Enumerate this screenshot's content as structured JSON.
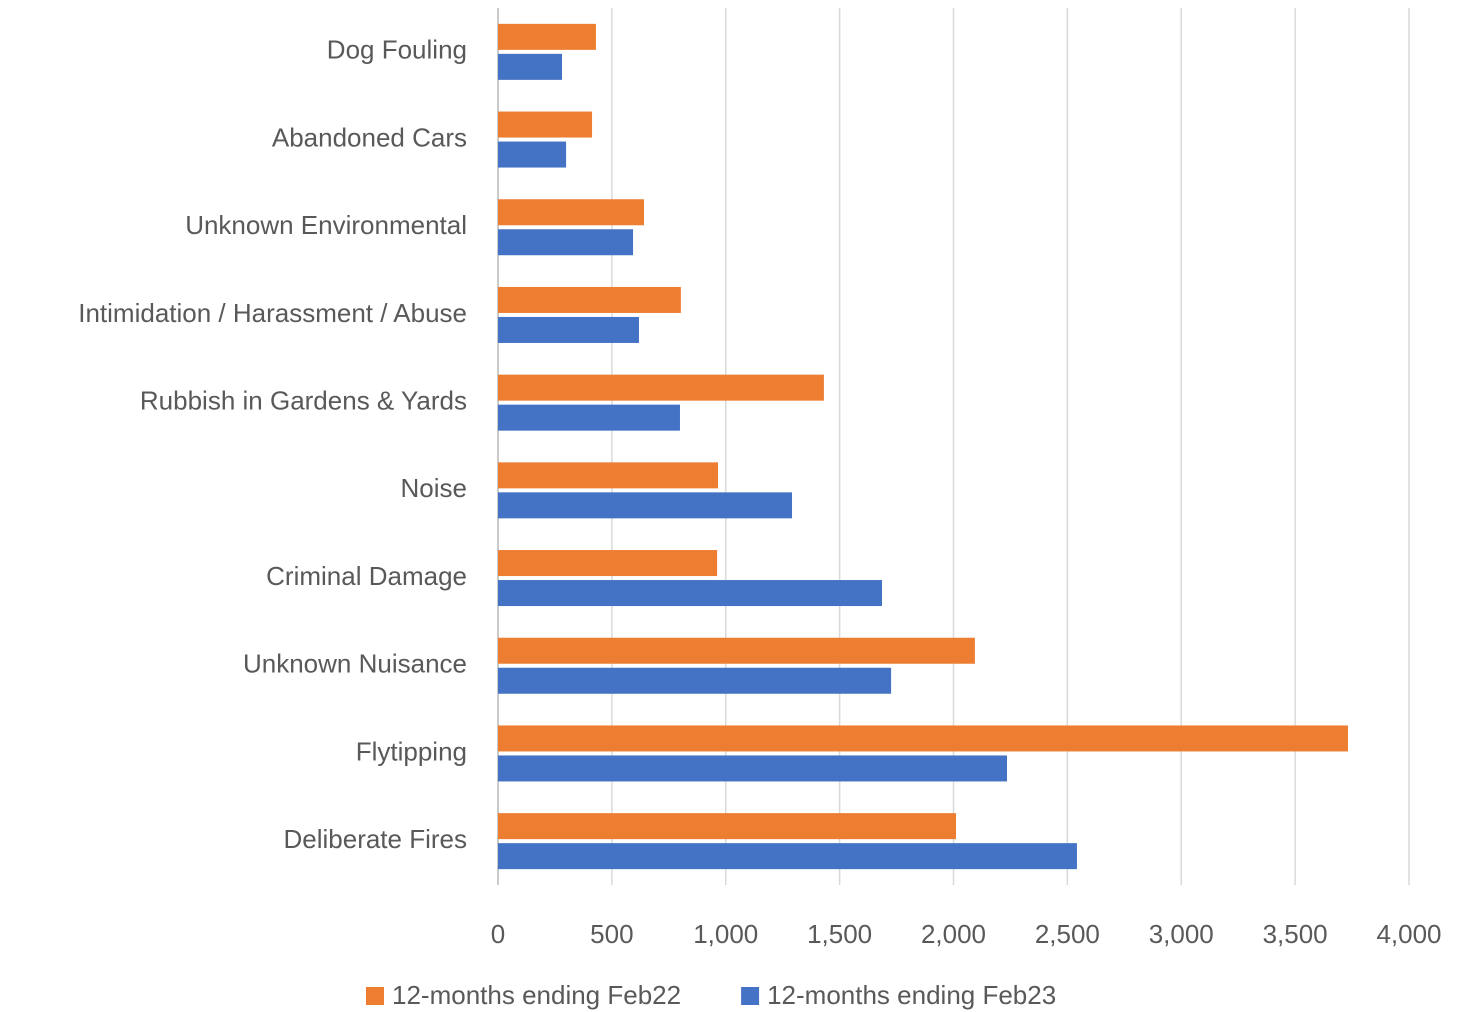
{
  "chart_data": {
    "type": "hbar",
    "categories": [
      "Dog Fouling",
      "Abandoned Cars",
      "Unknown Environmental",
      "Intimidation / Harassment / Abuse",
      "Rubbish in Gardens & Yards",
      "Noise",
      "Criminal Damage",
      "Unknown Nuisance",
      "Flytipping",
      "Deliberate Fires"
    ],
    "series": [
      {
        "name": "12-months ending Feb22",
        "color": "#ed7d31",
        "values": [
          430,
          413,
          641,
          803,
          1431,
          966,
          962,
          2094,
          3732,
          2011
        ]
      },
      {
        "name": "12-months ending Feb23",
        "color": "#4472c4",
        "values": [
          281,
          299,
          593,
          619,
          799,
          1291,
          1686,
          1726,
          2235,
          2542
        ]
      }
    ],
    "xlim": [
      0,
      4000
    ],
    "xticks": [
      0,
      500,
      {
        "value": 1000,
        "label": "1,000"
      },
      {
        "value": 1500,
        "label": "1,500"
      },
      {
        "value": 2000,
        "label": "2,000"
      },
      {
        "value": 2500,
        "label": "2,500"
      },
      {
        "value": 3000,
        "label": "3,000"
      },
      {
        "value": 3500,
        "label": "3,500"
      },
      {
        "value": 4000,
        "label": "4,000"
      }
    ],
    "grid": true,
    "legend": "bottom"
  }
}
